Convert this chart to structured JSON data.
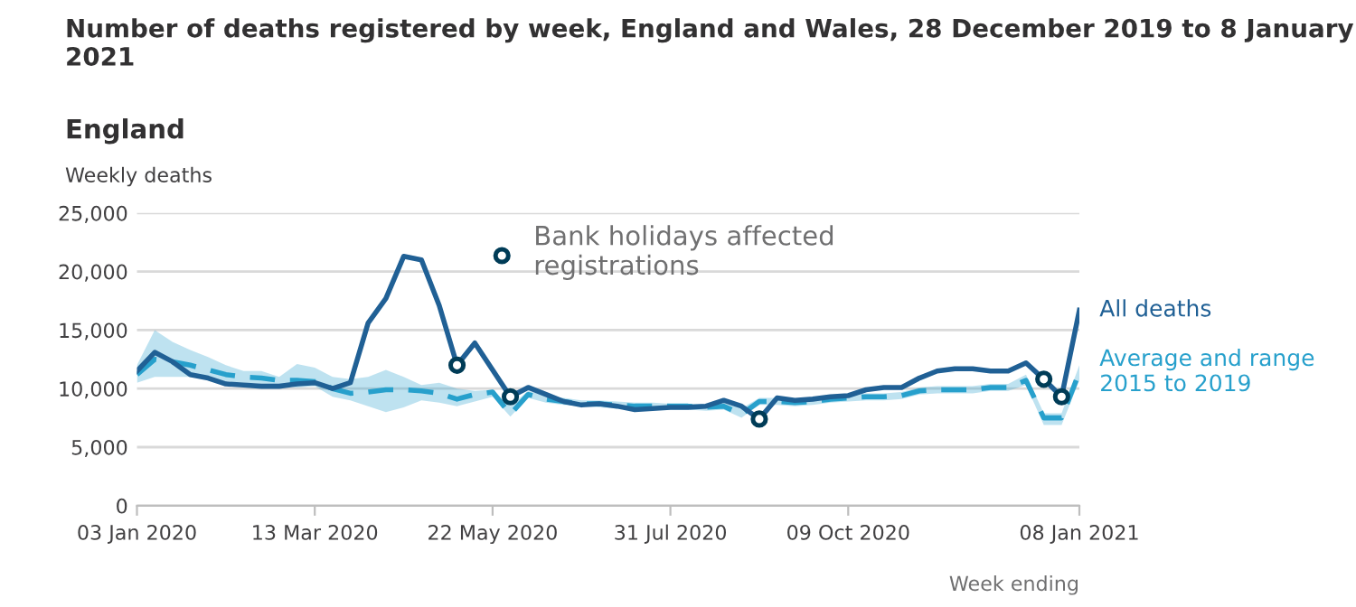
{
  "chart_data": {
    "type": "line",
    "title": "Number of deaths registered by week, England and Wales, 28 December 2019 to 8 January 2021",
    "subtitle": "England",
    "ylabel": "Weekly deaths",
    "xlabel": "Week ending",
    "x": [
      "2020-01-03",
      "2020-01-10",
      "2020-01-17",
      "2020-01-24",
      "2020-01-31",
      "2020-02-07",
      "2020-02-14",
      "2020-02-21",
      "2020-02-28",
      "2020-03-06",
      "2020-03-13",
      "2020-03-20",
      "2020-03-27",
      "2020-04-03",
      "2020-04-10",
      "2020-04-17",
      "2020-04-24",
      "2020-05-01",
      "2020-05-08",
      "2020-05-15",
      "2020-05-22",
      "2020-05-29",
      "2020-06-05",
      "2020-06-12",
      "2020-06-19",
      "2020-06-26",
      "2020-07-03",
      "2020-07-10",
      "2020-07-17",
      "2020-07-24",
      "2020-07-31",
      "2020-08-07",
      "2020-08-14",
      "2020-08-21",
      "2020-08-28",
      "2020-09-04",
      "2020-09-11",
      "2020-09-18",
      "2020-09-25",
      "2020-10-02",
      "2020-10-09",
      "2020-10-16",
      "2020-10-23",
      "2020-10-30",
      "2020-11-06",
      "2020-11-13",
      "2020-11-20",
      "2020-11-27",
      "2020-12-04",
      "2020-12-11",
      "2020-12-18",
      "2020-12-25",
      "2021-01-01",
      "2021-01-08"
    ],
    "series": [
      {
        "name": "Average and range\n2015 to 2019",
        "color": "#27a0cc",
        "line_style": "dashed",
        "values": [
          11200,
          12500,
          12300,
          12000,
          11600,
          11200,
          11000,
          10900,
          10700,
          10700,
          10600,
          10000,
          9600,
          9700,
          9900,
          9900,
          9800,
          9600,
          9100,
          9500,
          9700,
          7800,
          9500,
          9100,
          8900,
          8700,
          8700,
          8600,
          8500,
          8500,
          8500,
          8500,
          8400,
          8500,
          7800,
          8900,
          8900,
          8800,
          8900,
          9100,
          9200,
          9300,
          9300,
          9400,
          9800,
          9900,
          9900,
          9900,
          10100,
          10100,
          10700,
          7500,
          7500,
          11400
        ],
        "lower": [
          10500,
          11000,
          11000,
          11000,
          10800,
          10600,
          10500,
          10400,
          10300,
          10100,
          10200,
          9300,
          9000,
          8500,
          8000,
          8400,
          9000,
          8800,
          8500,
          8900,
          9300,
          7600,
          9200,
          8800,
          8600,
          8500,
          8400,
          8300,
          8200,
          8200,
          8200,
          8200,
          8100,
          8200,
          7500,
          8600,
          8600,
          8500,
          8600,
          8800,
          8900,
          9000,
          9000,
          9100,
          9500,
          9600,
          9600,
          9600,
          9800,
          9800,
          10300,
          6900,
          6900,
          10700
        ],
        "upper": [
          12000,
          15000,
          14000,
          13300,
          12700,
          12000,
          11500,
          11500,
          11000,
          12100,
          11800,
          11000,
          10800,
          11000,
          11600,
          11000,
          10300,
          10500,
          10000,
          9800,
          9900,
          8500,
          9800,
          9400,
          9200,
          9000,
          9000,
          8900,
          8800,
          8800,
          8700,
          8700,
          8700,
          8800,
          8300,
          9200,
          9200,
          9100,
          9200,
          9400,
          9500,
          9600,
          9600,
          9700,
          10100,
          10200,
          10200,
          10200,
          10400,
          10400,
          11200,
          7900,
          7900,
          12000
        ]
      },
      {
        "name": "All deaths",
        "color": "#206095",
        "line_style": "solid",
        "values": [
          11500,
          13100,
          12300,
          11200,
          10900,
          10400,
          10300,
          10200,
          10200,
          10400,
          10500,
          10000,
          10500,
          15600,
          17700,
          21300,
          21000,
          17100,
          12000,
          13900,
          11600,
          9300,
          10100,
          9500,
          8900,
          8600,
          8700,
          8500,
          8200,
          8300,
          8400,
          8400,
          8500,
          9000,
          8500,
          7400,
          9200,
          9000,
          9100,
          9300,
          9400,
          9900,
          10100,
          10100,
          10900,
          11500,
          11700,
          11700,
          11500,
          11500,
          12200,
          10800,
          9300,
          16700
        ]
      },
      {
        "name": "Bank holidays affected\nregistrations",
        "type": "scatter",
        "marker": "circle",
        "color": "#003c57",
        "x": [
          "2020-05-08",
          "2020-05-29",
          "2020-09-04",
          "2020-12-25",
          "2021-01-01"
        ],
        "values": [
          12000,
          9300,
          7400,
          10800,
          9300
        ]
      }
    ],
    "xlim": [
      "2020-01-03",
      "2021-01-08"
    ],
    "xticks": [
      {
        "value": "2020-01-03",
        "label": "03 Jan 2020"
      },
      {
        "value": "2020-03-13",
        "label": "13 Mar 2020"
      },
      {
        "value": "2020-05-22",
        "label": "22 May 2020"
      },
      {
        "value": "2020-07-31",
        "label": "31 Jul 2020"
      },
      {
        "value": "2020-10-09",
        "label": "09 Oct 2020"
      },
      {
        "value": "2021-01-08",
        "label": "08 Jan 2021"
      }
    ],
    "ylim": [
      0,
      25000
    ],
    "yticks": [
      {
        "value": 0,
        "label": "0"
      },
      {
        "value": 5000,
        "label": "5,000"
      },
      {
        "value": 10000,
        "label": "10,000"
      },
      {
        "value": 15000,
        "label": "15,000"
      },
      {
        "value": 20000,
        "label": "20,000"
      },
      {
        "value": 25000,
        "label": "25,000"
      }
    ],
    "grid": "y",
    "legend": "top"
  }
}
